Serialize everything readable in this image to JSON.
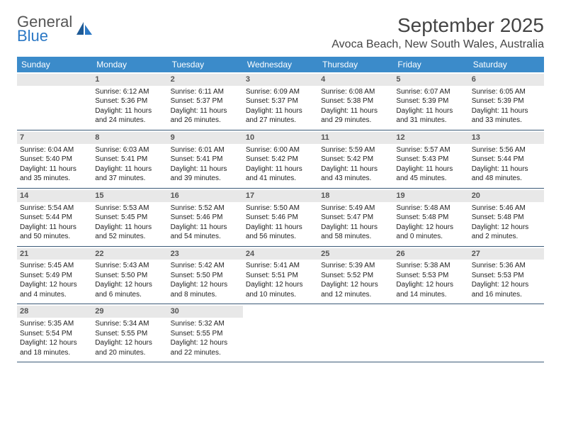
{
  "logo": {
    "general": "General",
    "blue": "Blue"
  },
  "title": "September 2025",
  "location": "Avoca Beach, New South Wales, Australia",
  "colors": {
    "header_bg": "#3b8bca",
    "header_text": "#ffffff",
    "daynum_bg": "#e8e8e8",
    "border": "#3b5a78",
    "logo_blue": "#2b78c5"
  },
  "weekdays": [
    "Sunday",
    "Monday",
    "Tuesday",
    "Wednesday",
    "Thursday",
    "Friday",
    "Saturday"
  ],
  "weeks": [
    [
      null,
      {
        "n": "1",
        "sunrise": "Sunrise: 6:12 AM",
        "sunset": "Sunset: 5:36 PM",
        "dl1": "Daylight: 11 hours",
        "dl2": "and 24 minutes."
      },
      {
        "n": "2",
        "sunrise": "Sunrise: 6:11 AM",
        "sunset": "Sunset: 5:37 PM",
        "dl1": "Daylight: 11 hours",
        "dl2": "and 26 minutes."
      },
      {
        "n": "3",
        "sunrise": "Sunrise: 6:09 AM",
        "sunset": "Sunset: 5:37 PM",
        "dl1": "Daylight: 11 hours",
        "dl2": "and 27 minutes."
      },
      {
        "n": "4",
        "sunrise": "Sunrise: 6:08 AM",
        "sunset": "Sunset: 5:38 PM",
        "dl1": "Daylight: 11 hours",
        "dl2": "and 29 minutes."
      },
      {
        "n": "5",
        "sunrise": "Sunrise: 6:07 AM",
        "sunset": "Sunset: 5:39 PM",
        "dl1": "Daylight: 11 hours",
        "dl2": "and 31 minutes."
      },
      {
        "n": "6",
        "sunrise": "Sunrise: 6:05 AM",
        "sunset": "Sunset: 5:39 PM",
        "dl1": "Daylight: 11 hours",
        "dl2": "and 33 minutes."
      }
    ],
    [
      {
        "n": "7",
        "sunrise": "Sunrise: 6:04 AM",
        "sunset": "Sunset: 5:40 PM",
        "dl1": "Daylight: 11 hours",
        "dl2": "and 35 minutes."
      },
      {
        "n": "8",
        "sunrise": "Sunrise: 6:03 AM",
        "sunset": "Sunset: 5:41 PM",
        "dl1": "Daylight: 11 hours",
        "dl2": "and 37 minutes."
      },
      {
        "n": "9",
        "sunrise": "Sunrise: 6:01 AM",
        "sunset": "Sunset: 5:41 PM",
        "dl1": "Daylight: 11 hours",
        "dl2": "and 39 minutes."
      },
      {
        "n": "10",
        "sunrise": "Sunrise: 6:00 AM",
        "sunset": "Sunset: 5:42 PM",
        "dl1": "Daylight: 11 hours",
        "dl2": "and 41 minutes."
      },
      {
        "n": "11",
        "sunrise": "Sunrise: 5:59 AM",
        "sunset": "Sunset: 5:42 PM",
        "dl1": "Daylight: 11 hours",
        "dl2": "and 43 minutes."
      },
      {
        "n": "12",
        "sunrise": "Sunrise: 5:57 AM",
        "sunset": "Sunset: 5:43 PM",
        "dl1": "Daylight: 11 hours",
        "dl2": "and 45 minutes."
      },
      {
        "n": "13",
        "sunrise": "Sunrise: 5:56 AM",
        "sunset": "Sunset: 5:44 PM",
        "dl1": "Daylight: 11 hours",
        "dl2": "and 48 minutes."
      }
    ],
    [
      {
        "n": "14",
        "sunrise": "Sunrise: 5:54 AM",
        "sunset": "Sunset: 5:44 PM",
        "dl1": "Daylight: 11 hours",
        "dl2": "and 50 minutes."
      },
      {
        "n": "15",
        "sunrise": "Sunrise: 5:53 AM",
        "sunset": "Sunset: 5:45 PM",
        "dl1": "Daylight: 11 hours",
        "dl2": "and 52 minutes."
      },
      {
        "n": "16",
        "sunrise": "Sunrise: 5:52 AM",
        "sunset": "Sunset: 5:46 PM",
        "dl1": "Daylight: 11 hours",
        "dl2": "and 54 minutes."
      },
      {
        "n": "17",
        "sunrise": "Sunrise: 5:50 AM",
        "sunset": "Sunset: 5:46 PM",
        "dl1": "Daylight: 11 hours",
        "dl2": "and 56 minutes."
      },
      {
        "n": "18",
        "sunrise": "Sunrise: 5:49 AM",
        "sunset": "Sunset: 5:47 PM",
        "dl1": "Daylight: 11 hours",
        "dl2": "and 58 minutes."
      },
      {
        "n": "19",
        "sunrise": "Sunrise: 5:48 AM",
        "sunset": "Sunset: 5:48 PM",
        "dl1": "Daylight: 12 hours",
        "dl2": "and 0 minutes."
      },
      {
        "n": "20",
        "sunrise": "Sunrise: 5:46 AM",
        "sunset": "Sunset: 5:48 PM",
        "dl1": "Daylight: 12 hours",
        "dl2": "and 2 minutes."
      }
    ],
    [
      {
        "n": "21",
        "sunrise": "Sunrise: 5:45 AM",
        "sunset": "Sunset: 5:49 PM",
        "dl1": "Daylight: 12 hours",
        "dl2": "and 4 minutes."
      },
      {
        "n": "22",
        "sunrise": "Sunrise: 5:43 AM",
        "sunset": "Sunset: 5:50 PM",
        "dl1": "Daylight: 12 hours",
        "dl2": "and 6 minutes."
      },
      {
        "n": "23",
        "sunrise": "Sunrise: 5:42 AM",
        "sunset": "Sunset: 5:50 PM",
        "dl1": "Daylight: 12 hours",
        "dl2": "and 8 minutes."
      },
      {
        "n": "24",
        "sunrise": "Sunrise: 5:41 AM",
        "sunset": "Sunset: 5:51 PM",
        "dl1": "Daylight: 12 hours",
        "dl2": "and 10 minutes."
      },
      {
        "n": "25",
        "sunrise": "Sunrise: 5:39 AM",
        "sunset": "Sunset: 5:52 PM",
        "dl1": "Daylight: 12 hours",
        "dl2": "and 12 minutes."
      },
      {
        "n": "26",
        "sunrise": "Sunrise: 5:38 AM",
        "sunset": "Sunset: 5:53 PM",
        "dl1": "Daylight: 12 hours",
        "dl2": "and 14 minutes."
      },
      {
        "n": "27",
        "sunrise": "Sunrise: 5:36 AM",
        "sunset": "Sunset: 5:53 PM",
        "dl1": "Daylight: 12 hours",
        "dl2": "and 16 minutes."
      }
    ],
    [
      {
        "n": "28",
        "sunrise": "Sunrise: 5:35 AM",
        "sunset": "Sunset: 5:54 PM",
        "dl1": "Daylight: 12 hours",
        "dl2": "and 18 minutes."
      },
      {
        "n": "29",
        "sunrise": "Sunrise: 5:34 AM",
        "sunset": "Sunset: 5:55 PM",
        "dl1": "Daylight: 12 hours",
        "dl2": "and 20 minutes."
      },
      {
        "n": "30",
        "sunrise": "Sunrise: 5:32 AM",
        "sunset": "Sunset: 5:55 PM",
        "dl1": "Daylight: 12 hours",
        "dl2": "and 22 minutes."
      },
      null,
      null,
      null,
      null
    ]
  ]
}
